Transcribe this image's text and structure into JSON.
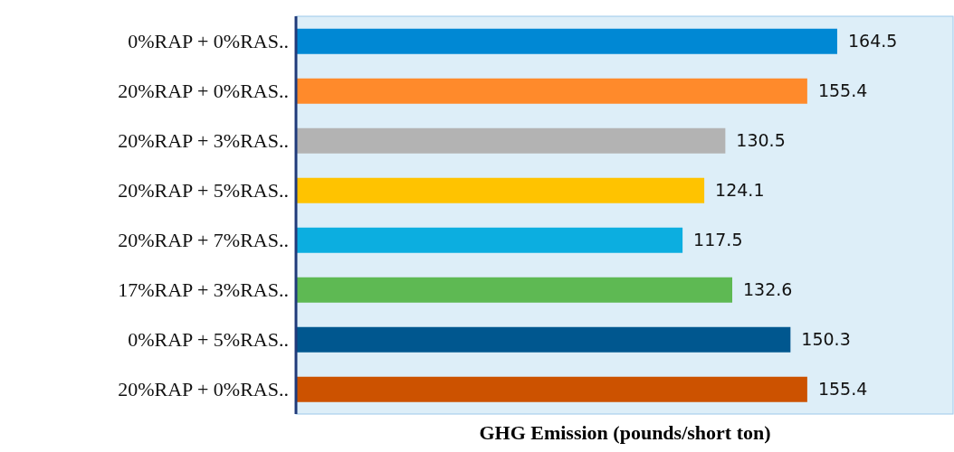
{
  "chart_data": {
    "type": "bar",
    "orientation": "horizontal",
    "xlabel": "GHG Emission (pounds/short ton)",
    "categories": [
      "0%RAP + 0%RAS..",
      "20%RAP + 0%RAS..",
      "20%RAP + 3%RAS..",
      "20%RAP + 5%RAS..",
      "20%RAP + 7%RAS..",
      "17%RAP + 3%RAS..",
      "0%RAP + 5%RAS..",
      "20%RAP + 0%RAS.."
    ],
    "values": [
      164.5,
      155.4,
      130.5,
      124.1,
      117.5,
      132.6,
      150.3,
      155.4
    ],
    "colors": [
      "#0088d4",
      "#ff8a2b",
      "#b3b3b3",
      "#ffc300",
      "#0caee0",
      "#5eb953",
      "#00578f",
      "#cc5200"
    ],
    "xlim": [
      0,
      200
    ],
    "data_labels": true,
    "grid": false,
    "tick_labels": "y"
  }
}
